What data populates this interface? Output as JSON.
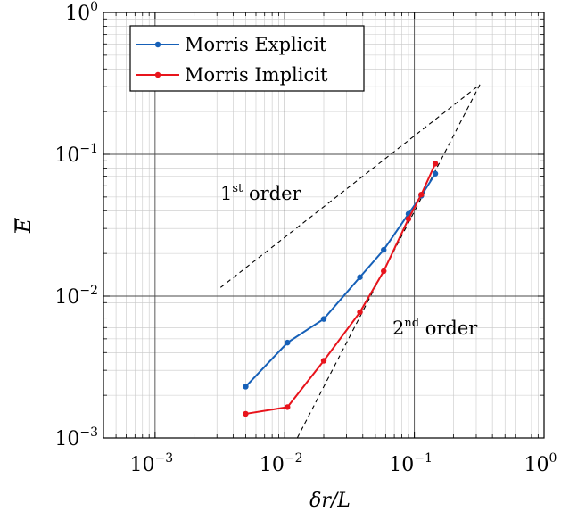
{
  "chart_data": {
    "type": "line",
    "xscale": "log",
    "yscale": "log",
    "xlim": [
      0.0004,
      1
    ],
    "ylim": [
      0.001,
      1
    ],
    "xlabel": "δr/L",
    "ylabel": "E",
    "grid": true,
    "legend_position": "top-left",
    "x_ticks": [
      {
        "base": "10",
        "exp": "−3",
        "value": 0.001
      },
      {
        "base": "10",
        "exp": "−2",
        "value": 0.01
      },
      {
        "base": "10",
        "exp": "−1",
        "value": 0.1
      },
      {
        "base": "10",
        "exp": "0",
        "value": 1
      }
    ],
    "y_ticks": [
      {
        "base": "10",
        "exp": "−3",
        "value": 0.001
      },
      {
        "base": "10",
        "exp": "−2",
        "value": 0.01
      },
      {
        "base": "10",
        "exp": "−1",
        "value": 0.1
      },
      {
        "base": "10",
        "exp": "0",
        "value": 1
      }
    ],
    "series": [
      {
        "name": "Morris Explicit",
        "color": "#1660b8",
        "x": [
          0.005,
          0.0105,
          0.02,
          0.038,
          0.058,
          0.09,
          0.113,
          0.145
        ],
        "y": [
          0.0023,
          0.0047,
          0.0069,
          0.0136,
          0.0212,
          0.038,
          0.051,
          0.073
        ]
      },
      {
        "name": "Morris Implicit",
        "color": "#e8141c",
        "x": [
          0.005,
          0.0105,
          0.02,
          0.038,
          0.058,
          0.09,
          0.113,
          0.145
        ],
        "y": [
          0.00148,
          0.00165,
          0.0035,
          0.0077,
          0.015,
          0.035,
          0.052,
          0.086
        ]
      }
    ],
    "reference_lines": [
      {
        "label_base": "1",
        "label_sup": "st",
        "label_rest": " order",
        "x": [
          0.0032,
          0.32
        ],
        "y": [
          0.0115,
          0.31
        ]
      },
      {
        "x": [
          0.0125,
          0.32
        ],
        "y": [
          0.001,
          0.31
        ]
      }
    ],
    "second_order_label": {
      "base": "2",
      "sup": "nd",
      "rest": " order"
    }
  }
}
